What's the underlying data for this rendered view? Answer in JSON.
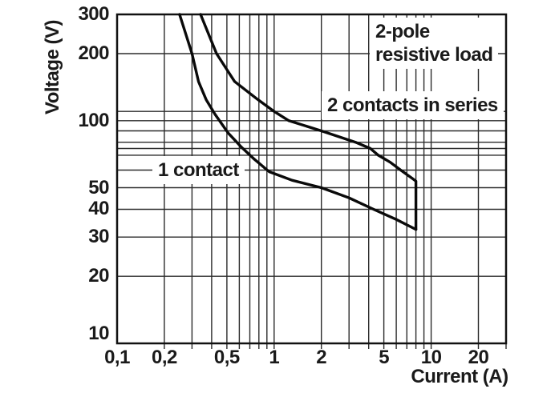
{
  "colors": {
    "background": "#ffffff",
    "grid": "#2b2b2b",
    "frame": "#111111",
    "curve": "#0a0a0a",
    "text": "#1a1a1a"
  },
  "annotations": {
    "load_type_line1": "2-pole",
    "load_type_line2": "resistive load",
    "series2_label": "2 contacts in series",
    "series1_label": "1 contact"
  },
  "chart_data": {
    "type": "line",
    "title": "",
    "xlabel": "Current (A)",
    "ylabel": "Voltage (V)",
    "x_scale": "log",
    "y_scale": "log",
    "xlim": [
      0.1,
      30
    ],
    "ylim": [
      10,
      300
    ],
    "grid": true,
    "legend_position": "none",
    "x_ticks": [
      {
        "value": 0.1,
        "label": "0,1"
      },
      {
        "value": 0.2,
        "label": "0,2"
      },
      {
        "value": 0.5,
        "label": "0,5"
      },
      {
        "value": 1,
        "label": "1"
      },
      {
        "value": 2,
        "label": "2"
      },
      {
        "value": 5,
        "label": "5"
      },
      {
        "value": 10,
        "label": "10"
      },
      {
        "value": 20,
        "label": "20"
      }
    ],
    "y_ticks": [
      {
        "value": 10,
        "label": "10"
      },
      {
        "value": 20,
        "label": "20"
      },
      {
        "value": 30,
        "label": "30"
      },
      {
        "value": 40,
        "label": "40"
      },
      {
        "value": 50,
        "label": "50"
      },
      {
        "value": 100,
        "label": "100"
      },
      {
        "value": 200,
        "label": "200"
      },
      {
        "value": 300,
        "label": "300"
      }
    ],
    "x_gridlines": [
      0.2,
      0.3,
      0.4,
      0.5,
      0.6,
      0.7,
      0.8,
      0.9,
      1,
      2,
      3,
      4,
      5,
      6,
      7,
      8,
      9,
      10,
      20,
      30
    ],
    "y_gridlines": [
      20,
      30,
      40,
      50,
      60,
      70,
      75,
      80,
      90,
      100,
      110,
      200
    ],
    "series": [
      {
        "name": "1 contact",
        "points": [
          [
            0.25,
            300
          ],
          [
            0.3,
            200
          ],
          [
            0.33,
            150
          ],
          [
            0.37,
            124
          ],
          [
            0.42,
            107
          ],
          [
            0.51,
            88
          ],
          [
            0.62,
            76
          ],
          [
            0.75,
            67
          ],
          [
            0.93,
            59
          ],
          [
            1.3,
            54
          ],
          [
            2.0,
            50
          ],
          [
            3.0,
            45
          ],
          [
            4.3,
            40
          ],
          [
            6.0,
            36
          ],
          [
            8.0,
            32.5
          ]
        ]
      },
      {
        "name": "2 contacts in series",
        "points": [
          [
            0.34,
            300
          ],
          [
            0.43,
            200
          ],
          [
            0.56,
            150
          ],
          [
            0.78,
            125
          ],
          [
            1.0,
            110
          ],
          [
            1.24,
            100
          ],
          [
            2.0,
            90
          ],
          [
            3.3,
            80
          ],
          [
            4.1,
            75
          ],
          [
            4.6,
            70
          ],
          [
            5.5,
            65
          ],
          [
            6.4,
            60
          ],
          [
            7.6,
            55
          ],
          [
            8.0,
            53.5
          ],
          [
            8.0,
            32.5
          ]
        ]
      }
    ],
    "max_switching_current_A": 8
  }
}
